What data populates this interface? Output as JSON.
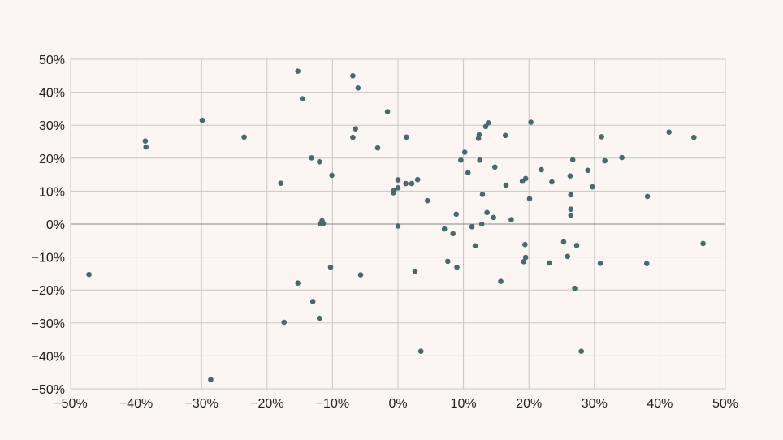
{
  "chart_data": {
    "type": "scatter",
    "title": "",
    "xlabel": "",
    "ylabel": "",
    "xlim": [
      -50,
      50
    ],
    "ylim": [
      -50,
      50
    ],
    "x_ticks": [
      -50,
      -40,
      -30,
      -20,
      -10,
      0,
      10,
      20,
      30,
      40,
      50
    ],
    "y_ticks": [
      -50,
      -40,
      -30,
      -20,
      -10,
      0,
      10,
      20,
      30,
      40,
      50
    ],
    "x_tick_labels": [
      "−50%",
      "−40%",
      "−30%",
      "−20%",
      "−10%",
      "0%",
      "10%",
      "20%",
      "30%",
      "40%",
      "50%"
    ],
    "y_tick_labels": [
      "−50%",
      "−40%",
      "−30%",
      "−20%",
      "−10%",
      "0%",
      "10%",
      "20%",
      "30%",
      "40%",
      "50%"
    ],
    "grid": true,
    "point_color": "#466a6e",
    "grid_color": "#c9c6c3",
    "zero_line_color": "#8a8a8a",
    "points": [
      [
        -47.2,
        -15.3
      ],
      [
        -38.6,
        25.2
      ],
      [
        -38.5,
        23.4
      ],
      [
        -29.9,
        31.5
      ],
      [
        -28.6,
        -47.2
      ],
      [
        -23.5,
        26.4
      ],
      [
        -17.9,
        12.4
      ],
      [
        -17.4,
        -29.8
      ],
      [
        -15.3,
        46.4
      ],
      [
        -15.3,
        -17.9
      ],
      [
        -14.6,
        38.0
      ],
      [
        -13.2,
        20.1
      ],
      [
        -13.0,
        -23.5
      ],
      [
        -12.0,
        18.9
      ],
      [
        -12.0,
        -28.6
      ],
      [
        -11.9,
        0.1
      ],
      [
        -11.6,
        1.0
      ],
      [
        -11.4,
        0.2
      ],
      [
        -10.3,
        -13.1
      ],
      [
        -10.1,
        14.8
      ],
      [
        -6.9,
        45.0
      ],
      [
        -6.9,
        26.3
      ],
      [
        -6.5,
        28.9
      ],
      [
        -6.1,
        41.3
      ],
      [
        -5.7,
        -15.4
      ],
      [
        -3.1,
        23.1
      ],
      [
        -1.6,
        34.1
      ],
      [
        -0.7,
        9.5
      ],
      [
        -0.6,
        10.3
      ],
      [
        0.0,
        11.0
      ],
      [
        0.0,
        13.4
      ],
      [
        0.0,
        -0.6
      ],
      [
        1.2,
        12.3
      ],
      [
        1.3,
        26.4
      ],
      [
        2.1,
        12.3
      ],
      [
        2.6,
        -14.3
      ],
      [
        3.0,
        13.5
      ],
      [
        3.5,
        -38.6
      ],
      [
        4.5,
        7.1
      ],
      [
        7.1,
        -1.5
      ],
      [
        7.6,
        -11.3
      ],
      [
        8.4,
        -2.9
      ],
      [
        8.9,
        3.0
      ],
      [
        9.0,
        -13.1
      ],
      [
        9.6,
        19.4
      ],
      [
        10.2,
        21.8
      ],
      [
        10.7,
        15.6
      ],
      [
        11.3,
        -0.8
      ],
      [
        11.8,
        -6.6
      ],
      [
        12.3,
        26.0
      ],
      [
        12.4,
        27.1
      ],
      [
        12.5,
        19.4
      ],
      [
        12.8,
        0.0
      ],
      [
        12.9,
        9.0
      ],
      [
        13.4,
        29.6
      ],
      [
        13.6,
        3.5
      ],
      [
        13.8,
        30.7
      ],
      [
        14.6,
        2.0
      ],
      [
        14.8,
        17.3
      ],
      [
        15.7,
        -17.4
      ],
      [
        16.4,
        26.9
      ],
      [
        16.5,
        11.8
      ],
      [
        17.3,
        1.3
      ],
      [
        19.0,
        13.0
      ],
      [
        19.2,
        -11.4
      ],
      [
        19.4,
        -6.2
      ],
      [
        19.5,
        13.8
      ],
      [
        19.5,
        -10.1
      ],
      [
        20.1,
        7.7
      ],
      [
        20.3,
        30.9
      ],
      [
        21.9,
        16.5
      ],
      [
        23.1,
        -11.8
      ],
      [
        23.5,
        12.8
      ],
      [
        25.3,
        -5.4
      ],
      [
        25.9,
        -9.8
      ],
      [
        26.3,
        14.6
      ],
      [
        26.4,
        8.9
      ],
      [
        26.4,
        4.5
      ],
      [
        26.4,
        2.7
      ],
      [
        26.7,
        19.5
      ],
      [
        27.0,
        -19.5
      ],
      [
        27.3,
        -6.5
      ],
      [
        28.0,
        -38.6
      ],
      [
        29.0,
        16.3
      ],
      [
        29.7,
        11.3
      ],
      [
        30.9,
        -11.9
      ],
      [
        31.1,
        26.5
      ],
      [
        31.6,
        19.2
      ],
      [
        34.2,
        20.2
      ],
      [
        38.0,
        -12.0
      ],
      [
        38.1,
        8.4
      ],
      [
        41.4,
        27.9
      ],
      [
        45.2,
        26.3
      ],
      [
        46.6,
        -5.9
      ]
    ]
  }
}
